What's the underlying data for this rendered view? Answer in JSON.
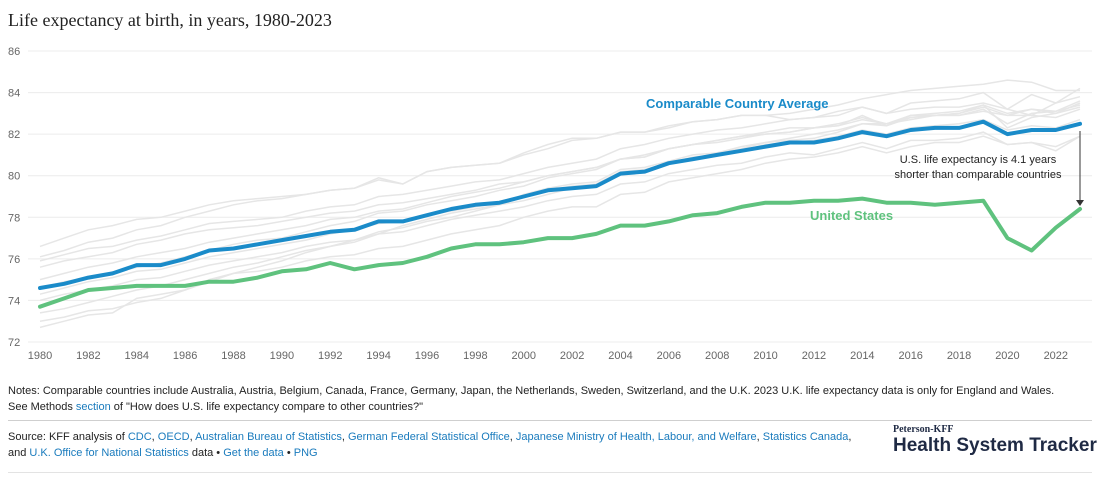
{
  "title": "Life expectancy at birth, in years, 1980-2023",
  "chart_data": {
    "type": "line",
    "x": [
      1980,
      1981,
      1982,
      1983,
      1984,
      1985,
      1986,
      1987,
      1988,
      1989,
      1990,
      1991,
      1992,
      1993,
      1994,
      1995,
      1996,
      1997,
      1998,
      1999,
      2000,
      2001,
      2002,
      2003,
      2004,
      2005,
      2006,
      2007,
      2008,
      2009,
      2010,
      2011,
      2012,
      2013,
      2014,
      2015,
      2016,
      2017,
      2018,
      2019,
      2020,
      2021,
      2022,
      2023
    ],
    "x_ticks": [
      "1980",
      "1982",
      "1984",
      "1986",
      "1988",
      "1990",
      "1992",
      "1994",
      "1996",
      "1998",
      "2000",
      "2002",
      "2004",
      "2006",
      "2008",
      "2010",
      "2012",
      "2014",
      "2016",
      "2018",
      "2020",
      "2022"
    ],
    "y_ticks": [
      "72",
      "74",
      "76",
      "78",
      "80",
      "82",
      "84",
      "86"
    ],
    "ylim": [
      72,
      86
    ],
    "xlim": [
      1980,
      2023
    ],
    "grid": true,
    "series": [
      {
        "name": "Comparable Country Average",
        "color": "#1a8bc9",
        "values": [
          74.6,
          74.8,
          75.1,
          75.3,
          75.7,
          75.7,
          76.0,
          76.4,
          76.5,
          76.7,
          76.9,
          77.1,
          77.3,
          77.4,
          77.8,
          77.8,
          78.1,
          78.4,
          78.6,
          78.7,
          79.0,
          79.3,
          79.4,
          79.5,
          80.1,
          80.2,
          80.6,
          80.8,
          81.0,
          81.2,
          81.4,
          81.6,
          81.6,
          81.8,
          82.1,
          81.9,
          82.2,
          82.3,
          82.3,
          82.6,
          82.0,
          82.2,
          82.2,
          82.5
        ]
      },
      {
        "name": "United States",
        "color": "#5fc27e",
        "values": [
          73.7,
          74.1,
          74.5,
          74.6,
          74.7,
          74.7,
          74.7,
          74.9,
          74.9,
          75.1,
          75.4,
          75.5,
          75.8,
          75.5,
          75.7,
          75.8,
          76.1,
          76.5,
          76.7,
          76.7,
          76.8,
          77.0,
          77.0,
          77.2,
          77.6,
          77.6,
          77.8,
          78.1,
          78.2,
          78.5,
          78.7,
          78.7,
          78.8,
          78.8,
          78.9,
          78.7,
          78.7,
          78.6,
          78.7,
          78.8,
          77.0,
          76.4,
          77.5,
          78.4
        ]
      }
    ],
    "background_series_color": "#e6e6e6",
    "background_series": [
      [
        75.0,
        75.3,
        75.6,
        75.8,
        76.1,
        76.3,
        76.5,
        76.8,
        77.0,
        77.2,
        77.4,
        77.6,
        77.9,
        78.0,
        78.3,
        78.4,
        78.7,
        79.0,
        79.2,
        79.4,
        79.7,
        80.0,
        80.2,
        80.4,
        80.8,
        80.9,
        81.3,
        81.5,
        81.7,
        81.9,
        82.1,
        82.3,
        82.3,
        82.5,
        82.8,
        82.5,
        82.9,
        83.0,
        83.1,
        83.4,
        83.0,
        83.2,
        83.1,
        83.6
      ],
      [
        74.0,
        74.3,
        74.5,
        74.7,
        75.0,
        75.1,
        75.4,
        75.7,
        75.9,
        76.1,
        76.3,
        76.6,
        76.8,
        76.9,
        77.2,
        77.3,
        77.6,
        77.9,
        78.1,
        78.3,
        78.5,
        78.8,
        79.0,
        79.1,
        79.6,
        79.7,
        80.1,
        80.3,
        80.5,
        80.6,
        80.9,
        81.1,
        81.0,
        81.3,
        81.6,
        81.3,
        81.7,
        81.7,
        81.8,
        82.1,
        81.5,
        81.6,
        81.4,
        81.9
      ],
      [
        76.1,
        76.4,
        76.8,
        77.0,
        77.4,
        77.6,
        78.0,
        78.3,
        78.6,
        78.8,
        78.9,
        79.1,
        79.3,
        79.4,
        79.8,
        79.6,
        80.2,
        80.4,
        80.5,
        80.6,
        81.0,
        81.3,
        81.7,
        81.8,
        82.1,
        82.1,
        82.3,
        82.6,
        82.7,
        82.9,
        82.9,
        82.7,
        82.8,
        83.1,
        83.3,
        83.0,
        83.2,
        83.3,
        83.3,
        83.5,
        83.2,
        82.9,
        83.5,
        83.8
      ],
      [
        73.0,
        73.2,
        73.5,
        73.6,
        73.9,
        74.1,
        74.5,
        74.9,
        75.3,
        75.4,
        75.6,
        75.9,
        76.1,
        76.2,
        76.5,
        76.6,
        76.9,
        77.2,
        77.4,
        77.6,
        78.0,
        78.3,
        78.5,
        78.5,
        79.1,
        79.2,
        79.7,
        79.9,
        80.1,
        80.3,
        80.6,
        80.8,
        80.9,
        81.1,
        81.4,
        81.1,
        81.4,
        81.6,
        81.6,
        81.9,
        81.5,
        81.6,
        81.2,
        81.9
      ],
      [
        75.6,
        75.9,
        76.1,
        76.3,
        76.7,
        76.9,
        77.2,
        77.4,
        77.5,
        77.6,
        77.8,
        78.0,
        78.2,
        78.3,
        78.6,
        78.7,
        78.9,
        79.1,
        79.3,
        79.6,
        79.7,
        80.0,
        80.2,
        80.4,
        80.8,
        81.0,
        81.3,
        81.5,
        81.7,
        81.9,
        82.0,
        82.1,
        82.3,
        82.4,
        82.7,
        82.5,
        82.8,
        82.9,
        82.9,
        83.2,
        82.5,
        83.0,
        83.1,
        83.4
      ],
      [
        72.7,
        73.0,
        73.3,
        73.4,
        74.1,
        74.3,
        74.5,
        75.0,
        75.3,
        75.6,
        75.9,
        76.3,
        76.6,
        76.8,
        77.2,
        77.6,
        77.9,
        78.2,
        78.4,
        78.6,
        79.1,
        79.4,
        79.6,
        79.7,
        80.3,
        80.4,
        80.7,
        81.0,
        81.1,
        81.4,
        81.6,
        81.7,
        81.8,
        82.1,
        82.5,
        82.5,
        82.7,
        82.9,
        82.9,
        83.1,
        82.9,
        82.9,
        82.8,
        83.2
      ],
      [
        74.3,
        74.6,
        74.9,
        75.1,
        75.4,
        75.5,
        75.8,
        76.1,
        76.3,
        76.5,
        76.7,
        76.9,
        77.2,
        77.4,
        77.7,
        77.8,
        78.1,
        78.3,
        78.5,
        78.7,
        79.0,
        79.3,
        79.5,
        79.6,
        80.2,
        80.3,
        80.6,
        80.9,
        81.0,
        81.2,
        81.5,
        81.6,
        81.7,
        81.9,
        82.2,
        82.0,
        82.3,
        82.4,
        82.5,
        82.7,
        82.2,
        82.4,
        82.3,
        82.7
      ],
      [
        73.4,
        73.6,
        73.9,
        74.2,
        74.5,
        74.7,
        75.0,
        75.3,
        75.6,
        75.8,
        76.1,
        76.4,
        76.6,
        76.9,
        77.3,
        77.5,
        77.8,
        78.0,
        78.3,
        78.6,
        78.8,
        79.1,
        79.4,
        79.6,
        80.1,
        80.3,
        80.6,
        80.8,
        81.1,
        81.3,
        81.6,
        81.8,
        82.0,
        82.2,
        82.5,
        82.4,
        82.8,
        82.9,
        83.0,
        83.3,
        82.9,
        83.2,
        83.0,
        83.5
      ],
      [
        76.6,
        77.0,
        77.4,
        77.6,
        77.9,
        78.0,
        78.3,
        78.6,
        78.8,
        78.9,
        79.0,
        79.1,
        79.3,
        79.4,
        79.9,
        79.6,
        80.2,
        80.4,
        80.5,
        80.6,
        81.1,
        81.5,
        81.8,
        81.8,
        82.1,
        82.1,
        82.4,
        82.6,
        82.7,
        82.9,
        82.9,
        83.0,
        83.2,
        83.4,
        83.7,
        83.9,
        84.1,
        84.2,
        84.3,
        84.4,
        84.6,
        84.5,
        84.1,
        84.1
      ],
      [
        75.9,
        76.2,
        76.5,
        76.6,
        76.9,
        77.1,
        77.4,
        77.7,
        77.8,
        77.9,
        78.0,
        78.3,
        78.5,
        78.6,
        79.0,
        79.1,
        79.3,
        79.5,
        79.7,
        79.8,
        80.1,
        80.4,
        80.6,
        80.8,
        81.3,
        81.5,
        81.8,
        82.0,
        82.2,
        82.3,
        82.5,
        82.7,
        82.8,
        82.9,
        83.3,
        83.0,
        83.5,
        83.6,
        83.7,
        84.0,
        83.2,
        83.9,
        83.5,
        84.2
      ],
      [
        74.6,
        74.9,
        75.1,
        75.3,
        75.6,
        75.8,
        76.1,
        76.4,
        76.7,
        76.9,
        77.0,
        77.3,
        77.6,
        77.8,
        78.2,
        78.3,
        78.6,
        78.8,
        79.0,
        79.3,
        79.5,
        79.9,
        80.1,
        80.3,
        80.8,
        80.9,
        81.3,
        81.5,
        81.6,
        81.8,
        82.0,
        82.1,
        82.3,
        82.4,
        82.9,
        82.4,
        82.9,
        82.9,
        83.0,
        83.4,
        82.3,
        82.8,
        83.0,
        83.3
      ]
    ]
  },
  "labels": {
    "cca": "Comparable Country Average",
    "us": "United States",
    "annotation_line1": "U.S. life expectancy is 4.1 years",
    "annotation_line2": "shorter than comparable countries"
  },
  "notes": {
    "line1": "Notes: Comparable countries include Australia, Austria, Belgium, Canada, France, Germany, Japan, the Netherlands, Sweden, Switzerland, and the U.K. 2023 U.K. life expectancy data is only for England and Wales.",
    "line2_pre": "See Methods ",
    "line2_link": "section",
    "line2_post": " of \"How does U.S. life expectancy compare to other countries?\""
  },
  "source": {
    "prefix": "Source: KFF analysis of ",
    "cdc": "CDC",
    "oecd": "OECD",
    "abs": "Australian Bureau of Statistics",
    "german": "German Federal Statistical Office",
    "japan": "Japanese Ministry of Health, Labour, and Welfare",
    "statcan": "Statistics Canada",
    "and": ", and ",
    "uk": "U.K. Office for National Statistics",
    "data": " data • ",
    "get_data": "Get the data",
    "bullet": " • ",
    "png": "PNG",
    "sep": ", "
  },
  "brand": {
    "top": "Peterson-KFF",
    "main": "Health System Tracker"
  }
}
